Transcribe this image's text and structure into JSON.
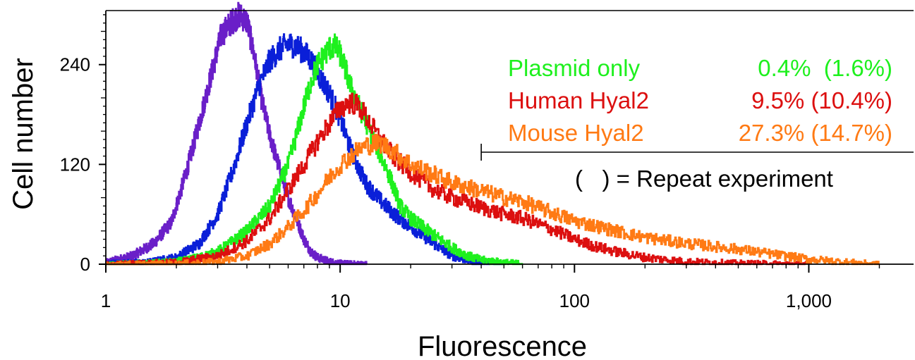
{
  "chart_data": {
    "type": "line",
    "title": "",
    "xlabel": "Fluorescence",
    "ylabel": "Cell number",
    "x_scale": "log",
    "xlim": [
      1,
      2800
    ],
    "ylim": [
      0,
      305
    ],
    "x_ticks": [
      {
        "value": 1,
        "label": "1"
      },
      {
        "value": 10,
        "label": "10"
      },
      {
        "value": 100,
        "label": "100"
      },
      {
        "value": 1000,
        "label": "1,000"
      }
    ],
    "y_ticks": [
      {
        "value": 0,
        "label": "0"
      },
      {
        "value": 120,
        "label": "120"
      },
      {
        "value": 240,
        "label": "240"
      }
    ],
    "grid": false,
    "legend_position": "top-right",
    "series": [
      {
        "name": "",
        "color": "#6a1fc8",
        "x": [
          1.0,
          1.3,
          1.6,
          1.9,
          2.2,
          2.5,
          2.8,
          3.1,
          3.4,
          3.7,
          4.0,
          4.3,
          4.6,
          5.0,
          5.5,
          6.0,
          6.5,
          7.0,
          7.5,
          8.0,
          9.0,
          10.0,
          11.0,
          12.0,
          13.0
        ],
        "y": [
          2,
          10,
          25,
          50,
          110,
          170,
          225,
          275,
          290,
          300,
          292,
          250,
          200,
          155,
          115,
          80,
          55,
          30,
          15,
          8,
          3,
          1,
          0.5,
          0.2,
          0
        ]
      },
      {
        "name": "",
        "color": "#0a1fd8",
        "x": [
          1.0,
          1.5,
          2.0,
          2.5,
          3.0,
          3.5,
          4.0,
          4.5,
          5.0,
          5.5,
          6.0,
          6.5,
          7.0,
          7.5,
          8.0,
          9.0,
          10.0,
          11.0,
          12.0,
          13.0,
          15.0,
          17.0,
          20.0,
          25.0,
          30.0,
          35.0,
          40.0,
          50.0
        ],
        "y": [
          1,
          2,
          8,
          25,
          60,
          115,
          170,
          215,
          245,
          258,
          265,
          262,
          255,
          245,
          230,
          205,
          175,
          140,
          115,
          95,
          75,
          60,
          45,
          25,
          10,
          5,
          2,
          0.5
        ]
      },
      {
        "name": "Plasmid only",
        "color": "#1ef01e",
        "x": [
          1.0,
          1.5,
          2.0,
          2.5,
          3.0,
          3.5,
          4.0,
          5.0,
          6.0,
          6.5,
          7.0,
          7.5,
          8.0,
          8.5,
          9.0,
          9.5,
          10.0,
          10.5,
          11.0,
          12.0,
          13.0,
          14.0,
          15.0,
          16.0,
          17.0,
          18.0,
          20.0,
          25.0,
          30.0,
          35.0,
          40.0,
          50.0,
          60.0
        ],
        "y": [
          0,
          1,
          3,
          8,
          15,
          28,
          40,
          70,
          120,
          155,
          190,
          220,
          240,
          250,
          260,
          262,
          252,
          235,
          215,
          190,
          168,
          148,
          128,
          110,
          90,
          70,
          55,
          35,
          20,
          10,
          5,
          2,
          0.5
        ]
      },
      {
        "name": "Human Hyal2",
        "color": "#dc0f0f",
        "x": [
          1.0,
          2.0,
          3.0,
          4.0,
          5.0,
          6.0,
          7.0,
          8.0,
          9.0,
          10.0,
          11.0,
          12.0,
          13.0,
          14.0,
          15.0,
          17.0,
          20.0,
          25.0,
          30.0,
          40.0,
          50.0,
          60.0,
          80.0,
          100.0,
          120.0,
          150.0,
          200.0,
          300.0,
          500.0,
          1000.0
        ],
        "y": [
          0,
          2,
          10,
          28,
          55,
          90,
          120,
          148,
          170,
          188,
          195,
          190,
          175,
          160,
          148,
          128,
          110,
          90,
          80,
          68,
          60,
          55,
          42,
          30,
          22,
          15,
          8,
          3,
          1,
          0
        ]
      },
      {
        "name": "Mouse Hyal2",
        "color": "#ff7a14",
        "x": [
          1.0,
          2.0,
          3.0,
          4.0,
          5.0,
          6.0,
          7.0,
          8.0,
          9.0,
          10.0,
          11.0,
          12.0,
          13.0,
          14.0,
          15.0,
          17.0,
          20.0,
          25.0,
          30.0,
          40.0,
          50.0,
          60.0,
          80.0,
          100.0,
          150.0,
          200.0,
          300.0,
          500.0,
          700.0,
          1000.0,
          1500.0,
          2000.0
        ],
        "y": [
          0,
          0.5,
          3,
          10,
          25,
          45,
          65,
          85,
          105,
          120,
          130,
          138,
          143,
          145,
          145,
          135,
          120,
          108,
          98,
          88,
          80,
          75,
          62,
          52,
          40,
          32,
          25,
          18,
          12,
          6,
          2,
          0
        ]
      }
    ],
    "legend": [
      {
        "label": "Plasmid only",
        "value": "0.4%  (1.6%)",
        "color": "#1ef01e"
      },
      {
        "label": "Human Hyal2",
        "value": "9.5% (10.4%)",
        "color": "#dc0f0f"
      },
      {
        "label": "Mouse Hyal2",
        "value": "27.3% (14.7%)",
        "color": "#ff7a14"
      }
    ],
    "gate_start": 40,
    "annotation": "(   ) = Repeat experiment"
  }
}
